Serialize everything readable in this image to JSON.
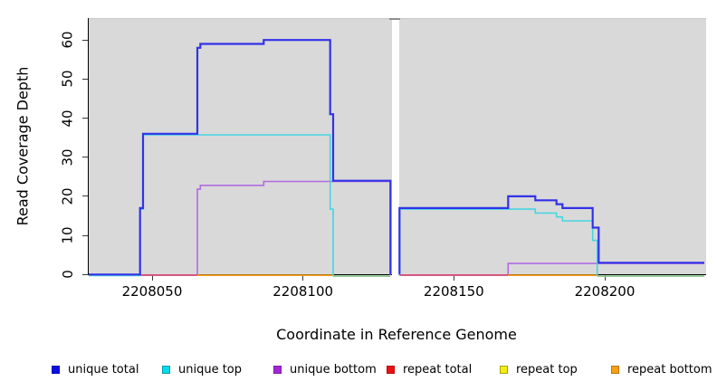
{
  "chart_data": {
    "type": "line",
    "subtype": "step",
    "title": "",
    "xlabel": "Coordinate in Reference Genome",
    "ylabel": "Read Coverage Depth",
    "xlim": [
      2208029,
      2208234
    ],
    "ylim": [
      0,
      65
    ],
    "grid": false,
    "panel_background": "#d9d9d9",
    "masked_region": {
      "from": 2208129.4,
      "to": 2208131.8
    },
    "x_ticks": [
      2208050,
      2208100,
      2208150,
      2208200
    ],
    "y_ticks": [
      0,
      10,
      20,
      30,
      40,
      50,
      60
    ],
    "series": [
      {
        "id": "unique_bottom",
        "name": "unique bottom",
        "color": "#b06be0",
        "segments": [
          [
            [
              2208029,
              0
            ],
            [
              2208065,
              0
            ],
            [
              2208065,
              22
            ],
            [
              2208066,
              22
            ],
            [
              2208066,
              23
            ],
            [
              2208087,
              23
            ],
            [
              2208087,
              24
            ],
            [
              2208129,
              24
            ],
            [
              2208129,
              0
            ]
          ],
          [
            [
              2208132,
              0
            ],
            [
              2208168,
              0
            ],
            [
              2208168,
              3
            ],
            [
              2208233,
              3
            ]
          ]
        ]
      },
      {
        "id": "repeat_total",
        "name": "repeat total",
        "color": "#d94f72",
        "segments": [
          [
            [
              2208046,
              0
            ],
            [
              2208065,
              0
            ]
          ],
          [
            [
              2208132,
              0
            ],
            [
              2208168,
              0
            ]
          ]
        ]
      },
      {
        "id": "repeat_bottom",
        "name": "repeat bottom",
        "color": "#f7a01b",
        "segments": [
          [
            [
              2208065,
              0
            ],
            [
              2208110,
              0
            ]
          ],
          [
            [
              2208168,
              0
            ],
            [
              2208197.5,
              0
            ]
          ]
        ]
      },
      {
        "id": "repeat_top",
        "name": "repeat top (blended with unique top at 0)",
        "color": "#8cc892",
        "segments": [
          [
            [
              2208110,
              0
            ],
            [
              2208129,
              0
            ]
          ],
          [
            [
              2208197.5,
              0
            ],
            [
              2208233,
              0
            ]
          ]
        ]
      },
      {
        "id": "unique_top",
        "name": "unique top",
        "color": "#45d6e2",
        "segments": [
          [
            [
              2208029,
              0
            ],
            [
              2208046,
              0
            ],
            [
              2208046,
              17
            ],
            [
              2208047,
              17
            ],
            [
              2208047,
              36
            ],
            [
              2208109,
              36
            ],
            [
              2208109,
              17
            ],
            [
              2208110,
              17
            ],
            [
              2208110,
              0
            ]
          ],
          [
            [
              2208132,
              0
            ],
            [
              2208132,
              17
            ],
            [
              2208177,
              17
            ],
            [
              2208177,
              16
            ],
            [
              2208184,
              16
            ],
            [
              2208184,
              15
            ],
            [
              2208186,
              15
            ],
            [
              2208186,
              14
            ],
            [
              2208196,
              14
            ],
            [
              2208196,
              9
            ],
            [
              2208197.5,
              9
            ],
            [
              2208197.5,
              0
            ]
          ]
        ]
      },
      {
        "id": "unique_total",
        "name": "unique total",
        "color": "#3232e8",
        "segments": [
          [
            [
              2208029,
              0
            ],
            [
              2208046,
              0
            ],
            [
              2208046,
              17
            ],
            [
              2208047,
              17
            ],
            [
              2208047,
              36
            ],
            [
              2208065,
              36
            ],
            [
              2208065,
              58
            ],
            [
              2208066,
              58
            ],
            [
              2208066,
              59
            ],
            [
              2208087,
              59
            ],
            [
              2208087,
              60
            ],
            [
              2208109,
              60
            ],
            [
              2208109,
              41
            ],
            [
              2208110,
              41
            ],
            [
              2208110,
              24
            ],
            [
              2208129,
              24
            ],
            [
              2208129,
              0
            ]
          ],
          [
            [
              2208132,
              0
            ],
            [
              2208132,
              17
            ],
            [
              2208168,
              17
            ],
            [
              2208168,
              20
            ],
            [
              2208177,
              20
            ],
            [
              2208177,
              19
            ],
            [
              2208184,
              19
            ],
            [
              2208184,
              18
            ],
            [
              2208186,
              18
            ],
            [
              2208186,
              17
            ],
            [
              2208196,
              17
            ],
            [
              2208196,
              12
            ],
            [
              2208198,
              12
            ],
            [
              2208198,
              3
            ],
            [
              2208233,
              3
            ]
          ]
        ]
      }
    ],
    "legend": {
      "position": "bottom",
      "items": [
        {
          "label": "unique total",
          "fill": "#0d0de6",
          "border": "#0909b4"
        },
        {
          "label": "unique top",
          "fill": "#00dcea",
          "border": "#0b9aa8"
        },
        {
          "label": "unique bottom",
          "fill": "#a623d6",
          "border": "#7d1fa4"
        },
        {
          "label": "repeat total",
          "fill": "#ee1111",
          "border": "#b40d0d"
        },
        {
          "label": "repeat top",
          "fill": "#f2ee12",
          "border": "#a8a40b"
        },
        {
          "label": "repeat bottom",
          "fill": "#f7a011",
          "border": "#bd7a0c"
        }
      ]
    }
  },
  "axis": {
    "x_title": "Coordinate in Reference Genome",
    "y_title": "Read Coverage Depth"
  }
}
